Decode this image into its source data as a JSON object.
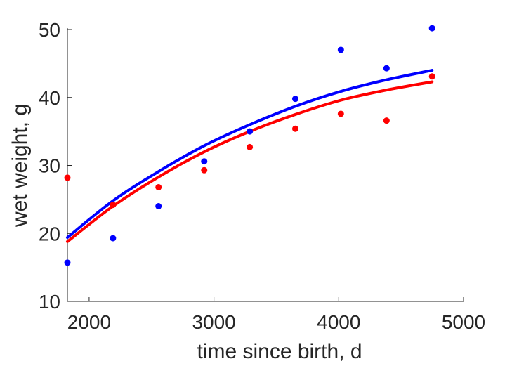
{
  "chart_data": {
    "type": "scatter",
    "xlabel": "time since birth, d",
    "ylabel": "wet weight, g",
    "xlim": [
      1826,
      5000
    ],
    "ylim": [
      10,
      50
    ],
    "xticks": [
      2000,
      3000,
      4000,
      5000
    ],
    "yticks": [
      10,
      20,
      30,
      40,
      50
    ],
    "x_tick_labels": [
      "2000",
      "3000",
      "4000",
      "5000"
    ],
    "y_tick_labels": [
      "10",
      "20",
      "30",
      "40",
      "50"
    ],
    "grid": false,
    "legend": "none",
    "series": [
      {
        "color": "#0000ff",
        "points": {
          "x": [
            1826,
            2191,
            2556,
            2922,
            3287,
            3652,
            4017,
            4383,
            4748
          ],
          "y": [
            15.7,
            19.3,
            24.0,
            30.6,
            35.0,
            39.8,
            47.0,
            44.3,
            50.2
          ]
        },
        "fit": {
          "x": [
            1826,
            2191,
            2556,
            2922,
            3287,
            3652,
            4017,
            4383,
            4748
          ],
          "y": [
            19.4,
            24.8,
            29.1,
            32.9,
            36.0,
            38.7,
            40.9,
            42.6,
            44.0
          ]
        }
      },
      {
        "color": "#ff0000",
        "points": {
          "x": [
            1826,
            2191,
            2556,
            2922,
            3287,
            3652,
            4017,
            4383,
            4748
          ],
          "y": [
            28.2,
            24.2,
            26.8,
            29.3,
            32.7,
            35.4,
            37.6,
            36.6,
            43.1
          ]
        },
        "fit": {
          "x": [
            1826,
            2191,
            2556,
            2922,
            3287,
            3652,
            4017,
            4383,
            4748
          ],
          "y": [
            18.8,
            24.0,
            28.3,
            32.0,
            35.0,
            37.5,
            39.6,
            41.1,
            42.3
          ]
        }
      }
    ]
  }
}
